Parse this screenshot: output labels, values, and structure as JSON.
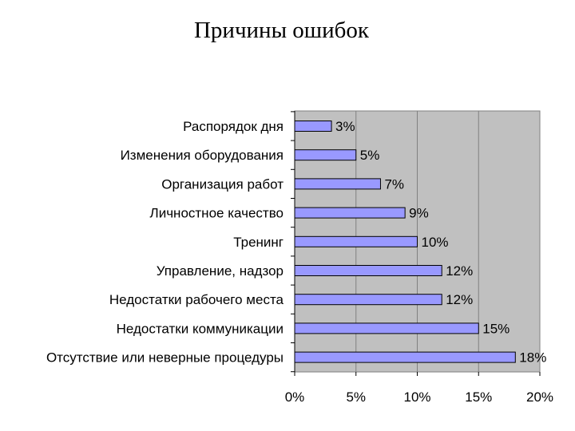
{
  "title": "Причины ошибок",
  "chart_data": {
    "type": "bar",
    "orientation": "horizontal",
    "title": "Причины ошибок",
    "categories": [
      "Распорядок дня",
      "Изменения оборудования",
      "Организация работ",
      "Личностное качество",
      "Тренинг",
      "Управление, надзор",
      "Недостатки рабочего места",
      "Недостатки коммуникации",
      "Отсутствие или неверные процедуры"
    ],
    "values": [
      3,
      5,
      7,
      9,
      10,
      12,
      12,
      15,
      18
    ],
    "data_labels": [
      "3%",
      "5%",
      "7%",
      "9%",
      "10%",
      "12%",
      "12%",
      "15%",
      "18%"
    ],
    "xlim": [
      0,
      20
    ],
    "xticks": [
      0,
      5,
      10,
      15,
      20
    ],
    "xtick_labels": [
      "0%",
      "5%",
      "10%",
      "15%",
      "20%"
    ],
    "xlabel": "",
    "ylabel": "",
    "grid": "vertical",
    "legend": "none",
    "colors": {
      "bar_fill": "#9999ff",
      "bar_stroke": "#000000",
      "plot_background": "#c0c0c0",
      "gridline": "#808080"
    }
  }
}
